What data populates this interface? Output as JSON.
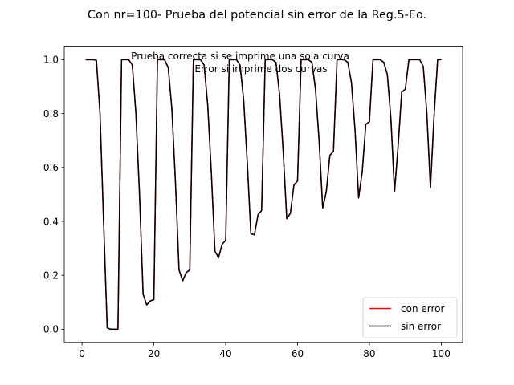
{
  "chart_data": {
    "type": "line",
    "title": "Con nr=100- Prueba del potencial sin error  de la Reg.5-Eo.",
    "annotation": [
      "Prueba correcta si se imprime una sola curva",
      "Error si imprime dos curvas"
    ],
    "xlabel": "",
    "ylabel": "",
    "xlim": [
      -4.95,
      105.95
    ],
    "ylim": [
      -0.05,
      1.05
    ],
    "xticks": [
      0,
      20,
      40,
      60,
      80,
      100
    ],
    "xtick_labels": [
      "0",
      "20",
      "40",
      "60",
      "80",
      "100"
    ],
    "yticks": [
      0.0,
      0.2,
      0.4,
      0.6,
      0.8,
      1.0
    ],
    "ytick_labels": [
      "0.0",
      "0.2",
      "0.4",
      "0.6",
      "0.8",
      "1.0"
    ],
    "grid": false,
    "legend_position": "lower-right",
    "x": [
      1,
      2,
      3,
      4,
      5,
      6,
      7,
      8,
      9,
      10,
      11,
      12,
      13,
      14,
      15,
      16,
      17,
      18,
      19,
      20,
      21,
      22,
      23,
      24,
      25,
      26,
      27,
      28,
      29,
      30,
      31,
      32,
      33,
      34,
      35,
      36,
      37,
      38,
      39,
      40,
      41,
      42,
      43,
      44,
      45,
      46,
      47,
      48,
      49,
      50,
      51,
      52,
      53,
      54,
      55,
      56,
      57,
      58,
      59,
      60,
      61,
      62,
      63,
      64,
      65,
      66,
      67,
      68,
      69,
      70,
      71,
      72,
      73,
      74,
      75,
      76,
      77,
      78,
      79,
      80,
      81,
      82,
      83,
      84,
      85,
      86,
      87,
      88,
      89,
      90,
      91,
      92,
      93,
      94,
      95,
      96,
      97,
      98,
      99,
      100
    ],
    "series": [
      {
        "name": "con error",
        "color": "#ff0000",
        "values": [
          1.0,
          1.0,
          1.0,
          0.998,
          0.8,
          0.4,
          0.005,
          0.0,
          0.0,
          0.0,
          1.0,
          1.0,
          1.0,
          0.98,
          0.8,
          0.5,
          0.13,
          0.09,
          0.105,
          0.11,
          1.0,
          1.0,
          1.0,
          0.97,
          0.82,
          0.55,
          0.22,
          0.18,
          0.21,
          0.22,
          1.0,
          1.0,
          1.0,
          0.98,
          0.83,
          0.58,
          0.29,
          0.265,
          0.315,
          0.33,
          1.0,
          1.0,
          1.0,
          0.98,
          0.85,
          0.62,
          0.355,
          0.35,
          0.425,
          0.44,
          1.0,
          1.0,
          1.0,
          0.99,
          0.87,
          0.66,
          0.41,
          0.43,
          0.535,
          0.55,
          1.0,
          1.0,
          1.0,
          0.99,
          0.89,
          0.7,
          0.45,
          0.51,
          0.645,
          0.66,
          1.0,
          1.0,
          1.0,
          0.99,
          0.915,
          0.74,
          0.487,
          0.583,
          0.76,
          0.77,
          1.0,
          1.0,
          1.0,
          0.99,
          0.945,
          0.78,
          0.51,
          0.68,
          0.88,
          0.89,
          1.0,
          1.0,
          1.0,
          1.0,
          0.975,
          0.8,
          0.525,
          0.79,
          1.0,
          1.0
        ]
      },
      {
        "name": "sin error",
        "color": "#000000",
        "values": [
          1.0,
          1.0,
          1.0,
          0.998,
          0.8,
          0.4,
          0.005,
          0.0,
          0.0,
          0.0,
          1.0,
          1.0,
          1.0,
          0.98,
          0.8,
          0.5,
          0.13,
          0.09,
          0.105,
          0.11,
          1.0,
          1.0,
          1.0,
          0.97,
          0.82,
          0.55,
          0.22,
          0.18,
          0.21,
          0.22,
          1.0,
          1.0,
          1.0,
          0.98,
          0.83,
          0.58,
          0.29,
          0.265,
          0.315,
          0.33,
          1.0,
          1.0,
          1.0,
          0.98,
          0.85,
          0.62,
          0.355,
          0.35,
          0.425,
          0.44,
          1.0,
          1.0,
          1.0,
          0.99,
          0.87,
          0.66,
          0.41,
          0.43,
          0.535,
          0.55,
          1.0,
          1.0,
          1.0,
          0.99,
          0.89,
          0.7,
          0.45,
          0.51,
          0.645,
          0.66,
          1.0,
          1.0,
          1.0,
          0.99,
          0.915,
          0.74,
          0.487,
          0.583,
          0.76,
          0.77,
          1.0,
          1.0,
          1.0,
          0.99,
          0.945,
          0.78,
          0.51,
          0.68,
          0.88,
          0.89,
          1.0,
          1.0,
          1.0,
          1.0,
          0.975,
          0.8,
          0.525,
          0.79,
          1.0,
          1.0
        ]
      }
    ]
  }
}
